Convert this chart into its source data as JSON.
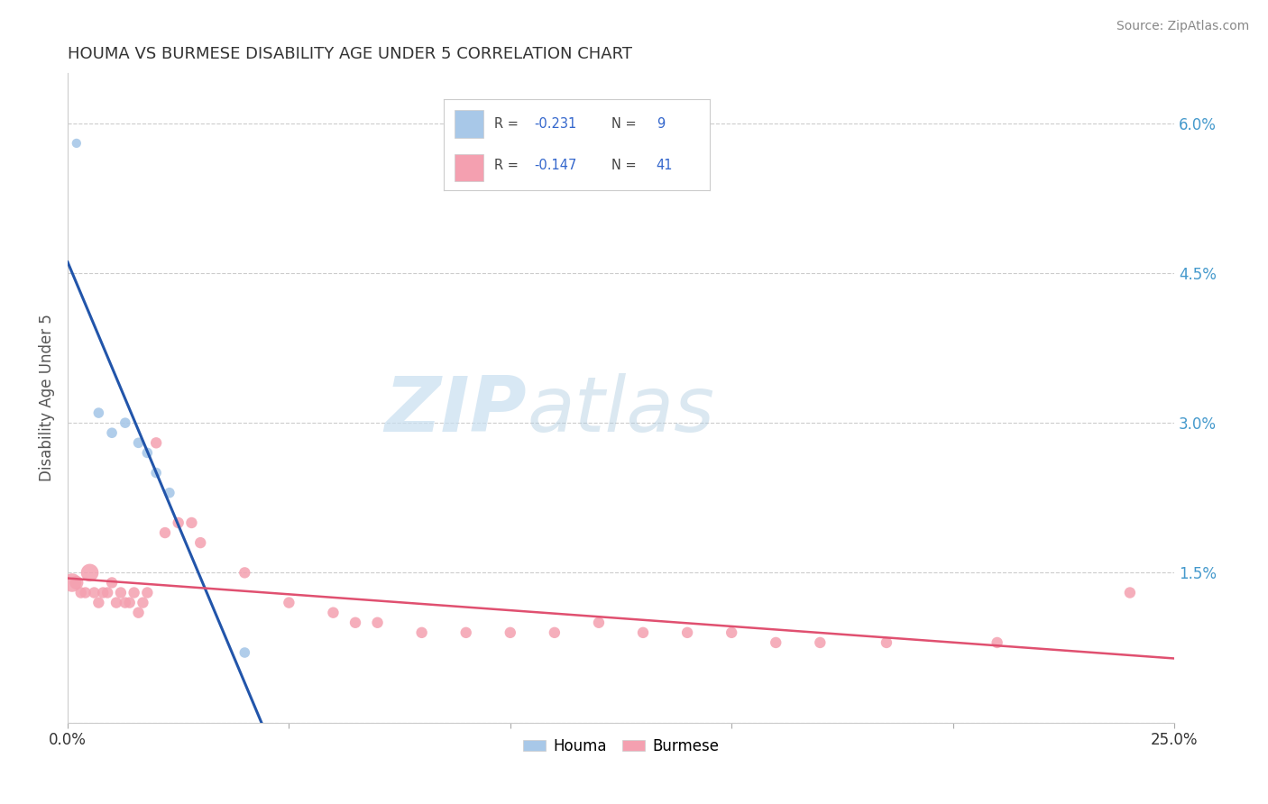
{
  "title": "HOUMA VS BURMESE DISABILITY AGE UNDER 5 CORRELATION CHART",
  "source_text": "Source: ZipAtlas.com",
  "ylabel": "Disability Age Under 5",
  "xlim": [
    0.0,
    0.25
  ],
  "ylim": [
    0.0,
    0.065
  ],
  "xtick_vals": [
    0.0,
    0.05,
    0.1,
    0.15,
    0.2,
    0.25
  ],
  "xtick_labels": [
    "0.0%",
    "",
    "",
    "",
    "",
    "25.0%"
  ],
  "ytick_vals_right": [
    0.0,
    0.015,
    0.03,
    0.045,
    0.06
  ],
  "ytick_labels_right": [
    "",
    "1.5%",
    "3.0%",
    "4.5%",
    "6.0%"
  ],
  "houma_color": "#a8c8e8",
  "houma_line_color": "#2255aa",
  "burmese_color": "#f4a0b0",
  "burmese_line_color": "#e05070",
  "dashed_gray_color": "#aabbcc",
  "houma_R": -0.231,
  "houma_N": 9,
  "burmese_R": -0.147,
  "burmese_N": 41,
  "houma_x": [
    0.002,
    0.007,
    0.01,
    0.013,
    0.016,
    0.018,
    0.02,
    0.023,
    0.04
  ],
  "houma_y": [
    0.058,
    0.031,
    0.029,
    0.03,
    0.028,
    0.027,
    0.025,
    0.023,
    0.007
  ],
  "houma_sizes": [
    55,
    70,
    70,
    70,
    70,
    70,
    70,
    70,
    70
  ],
  "burmese_x": [
    0.001,
    0.002,
    0.003,
    0.004,
    0.005,
    0.006,
    0.007,
    0.008,
    0.009,
    0.01,
    0.011,
    0.012,
    0.013,
    0.014,
    0.015,
    0.016,
    0.017,
    0.018,
    0.02,
    0.022,
    0.025,
    0.028,
    0.03,
    0.04,
    0.05,
    0.06,
    0.065,
    0.07,
    0.08,
    0.09,
    0.1,
    0.11,
    0.12,
    0.13,
    0.14,
    0.15,
    0.16,
    0.17,
    0.185,
    0.21,
    0.24
  ],
  "burmese_y": [
    0.014,
    0.014,
    0.013,
    0.013,
    0.015,
    0.013,
    0.012,
    0.013,
    0.013,
    0.014,
    0.012,
    0.013,
    0.012,
    0.012,
    0.013,
    0.011,
    0.012,
    0.013,
    0.028,
    0.019,
    0.02,
    0.02,
    0.018,
    0.015,
    0.012,
    0.011,
    0.01,
    0.01,
    0.009,
    0.009,
    0.009,
    0.009,
    0.01,
    0.009,
    0.009,
    0.009,
    0.008,
    0.008,
    0.008,
    0.008,
    0.013
  ],
  "burmese_sizes": [
    220,
    120,
    80,
    80,
    200,
    80,
    80,
    80,
    80,
    80,
    80,
    80,
    80,
    80,
    80,
    80,
    80,
    80,
    80,
    80,
    80,
    80,
    80,
    80,
    80,
    80,
    80,
    80,
    80,
    80,
    80,
    80,
    80,
    80,
    80,
    80,
    80,
    80,
    80,
    80,
    80
  ],
  "watermark_zip": "ZIP",
  "watermark_atlas": "atlas",
  "background_color": "#ffffff",
  "grid_color": "#dddddd",
  "legend_color": "#3366cc",
  "legend_text_color": "#444444"
}
